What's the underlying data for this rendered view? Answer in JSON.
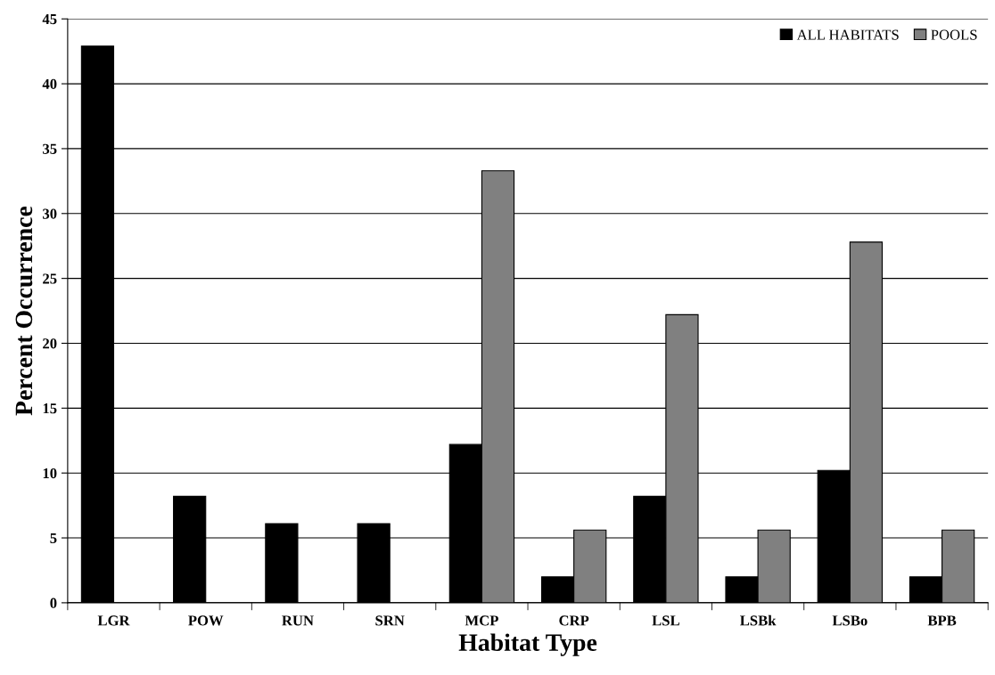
{
  "chart_data": {
    "type": "bar",
    "xlabel": "Habitat Type",
    "ylabel": "Percent Occurrence",
    "categories": [
      "LGR",
      "POW",
      "RUN",
      "SRN",
      "MCP",
      "CRP",
      "LSL",
      "LSBk",
      "LSBo",
      "BPB"
    ],
    "series": [
      {
        "name": "ALL HABITATS",
        "color": "#000000",
        "values": [
          42.9,
          8.2,
          6.1,
          6.1,
          12.2,
          2.0,
          8.2,
          2.0,
          10.2,
          2.0
        ]
      },
      {
        "name": "POOLS",
        "color": "#808080",
        "values": [
          null,
          null,
          null,
          null,
          33.3,
          5.6,
          22.2,
          5.6,
          27.8,
          5.6
        ]
      }
    ],
    "ylim": [
      0,
      45
    ],
    "yticks": [
      0,
      5,
      10,
      15,
      20,
      25,
      30,
      35,
      40,
      45
    ],
    "grid": "y",
    "legend": "top right"
  }
}
